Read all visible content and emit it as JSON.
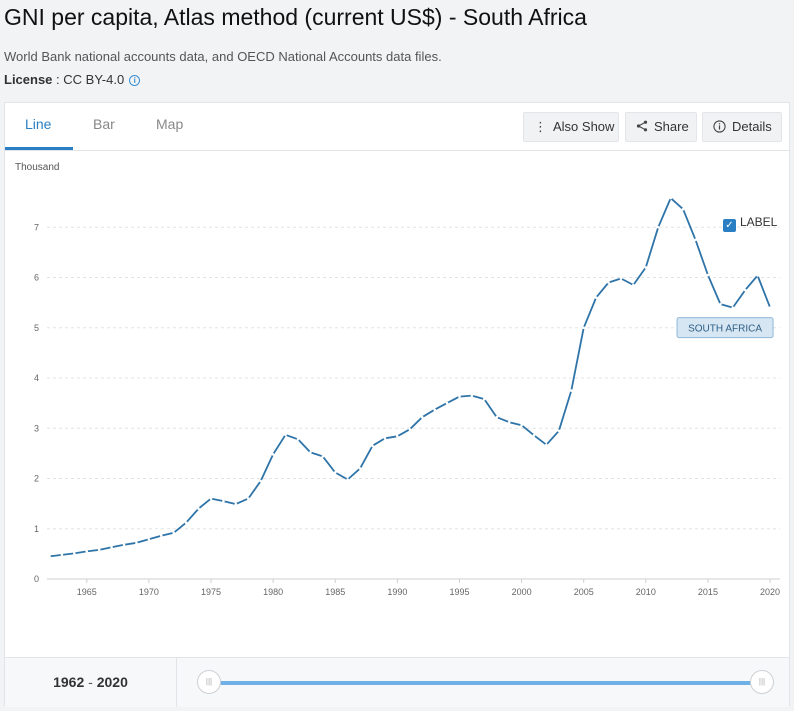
{
  "header": {
    "title": "GNI per capita, Atlas method (current US$) - South Africa",
    "source": "World Bank national accounts data, and OECD National Accounts data files.",
    "license_label": "License",
    "license_sep": " : ",
    "license_value": "CC BY-4.0",
    "info_icon": "i"
  },
  "tabs": [
    {
      "label": "Line",
      "active": true
    },
    {
      "label": "Bar",
      "active": false
    },
    {
      "label": "Map",
      "active": false
    }
  ],
  "toolbar": {
    "also_show": "Also Show",
    "share": "Share",
    "details": "Details"
  },
  "label_toggle": {
    "text": "LABEL",
    "checked": true
  },
  "range": {
    "start": "1962",
    "sep": " - ",
    "end": "2020"
  },
  "colors": {
    "line": "#2e74a8",
    "accent": "#2a7fc4",
    "slider": "#6fb0e6"
  },
  "chart_data": {
    "type": "line",
    "ylabel": "Thousand",
    "ylim": [
      0,
      8
    ],
    "yticks": [
      0,
      1,
      2,
      3,
      4,
      5,
      6,
      7
    ],
    "xlim": [
      1961.8,
      2020.8
    ],
    "xticks": [
      1965,
      1970,
      1975,
      1980,
      1985,
      1990,
      1995,
      2000,
      2005,
      2010,
      2015,
      2020
    ],
    "grid": "horizontal dashed",
    "series": [
      {
        "name": "SOUTH AFRICA",
        "x": [
          1962,
          1963,
          1964,
          1965,
          1966,
          1967,
          1968,
          1969,
          1970,
          1971,
          1972,
          1973,
          1974,
          1975,
          1976,
          1977,
          1978,
          1979,
          1980,
          1981,
          1982,
          1983,
          1984,
          1985,
          1986,
          1987,
          1988,
          1989,
          1990,
          1991,
          1992,
          1993,
          1994,
          1995,
          1996,
          1997,
          1998,
          1999,
          2000,
          2001,
          2002,
          2003,
          2004,
          2005,
          2006,
          2007,
          2008,
          2009,
          2010,
          2011,
          2012,
          2013,
          2014,
          2015,
          2016,
          2017,
          2018,
          2019,
          2020
        ],
        "values": [
          0.45,
          0.48,
          0.51,
          0.55,
          0.58,
          0.63,
          0.68,
          0.72,
          0.79,
          0.86,
          0.92,
          1.12,
          1.4,
          1.6,
          1.55,
          1.49,
          1.6,
          1.95,
          2.48,
          2.87,
          2.78,
          2.52,
          2.44,
          2.12,
          1.98,
          2.2,
          2.65,
          2.8,
          2.84,
          2.98,
          3.22,
          3.37,
          3.5,
          3.63,
          3.65,
          3.58,
          3.22,
          3.12,
          3.06,
          2.86,
          2.67,
          2.95,
          3.75,
          5.0,
          5.6,
          5.9,
          5.98,
          5.85,
          6.2,
          7.0,
          7.58,
          7.36,
          6.75,
          6.05,
          5.47,
          5.4,
          5.75,
          6.04,
          5.4
        ]
      }
    ]
  }
}
